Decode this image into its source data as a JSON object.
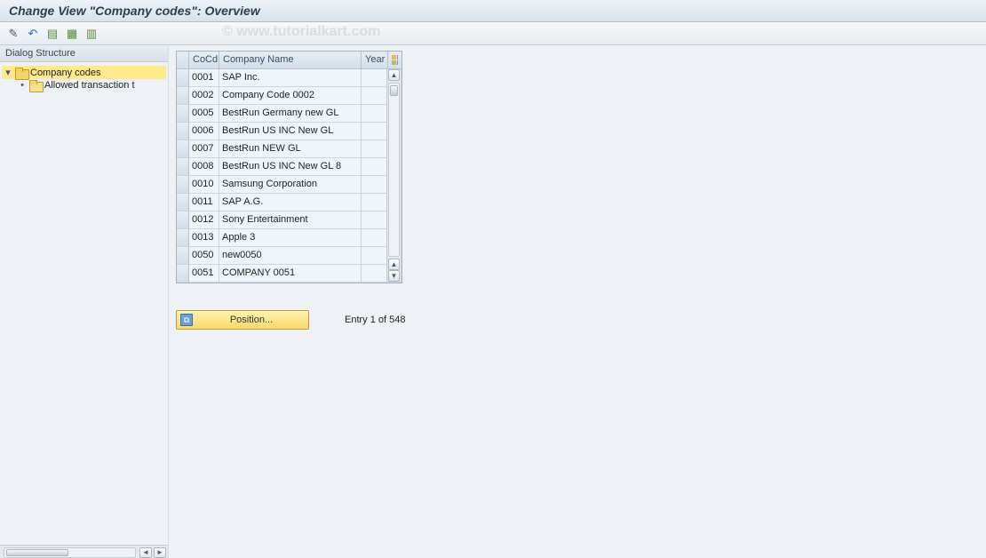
{
  "title": "Change View \"Company codes\": Overview",
  "watermark": "© www.tutorialkart.com",
  "toolbar": {
    "icons": [
      "edit",
      "undo",
      "save",
      "save-var",
      "table"
    ]
  },
  "tree": {
    "header": "Dialog Structure",
    "root": {
      "label": "Company codes",
      "expanded": true,
      "selected": true
    },
    "child": {
      "label": "Allowed transaction t"
    }
  },
  "grid": {
    "columns": {
      "cocd": "CoCd",
      "name": "Company Name",
      "year": "Year"
    },
    "rows": [
      {
        "cocd": "0001",
        "name": "SAP Inc.",
        "year": ""
      },
      {
        "cocd": "0002",
        "name": "Company Code 0002",
        "year": ""
      },
      {
        "cocd": "0005",
        "name": "BestRun Germany new GL",
        "year": ""
      },
      {
        "cocd": "0006",
        "name": "BestRun US INC New GL",
        "year": ""
      },
      {
        "cocd": "0007",
        "name": "BestRun NEW GL",
        "year": ""
      },
      {
        "cocd": "0008",
        "name": "BestRun US INC New GL 8",
        "year": ""
      },
      {
        "cocd": "0010",
        "name": "Samsung Corporation",
        "year": ""
      },
      {
        "cocd": "0011",
        "name": "SAP A.G.",
        "year": ""
      },
      {
        "cocd": "0012",
        "name": "Sony Entertainment",
        "year": ""
      },
      {
        "cocd": "0013",
        "name": "Apple 3",
        "year": ""
      },
      {
        "cocd": "0050",
        "name": "new0050",
        "year": ""
      },
      {
        "cocd": "0051",
        "name": "COMPANY 0051",
        "year": ""
      }
    ]
  },
  "position": {
    "button_label": "Position...",
    "entry_text": "Entry 1 of 548"
  },
  "colors": {
    "background": "#eef1f5",
    "title_gradient_top": "#edf2f7",
    "title_gradient_bottom": "#d8e2ec",
    "selection": "#ffe98a",
    "folder": "#f6d36b",
    "grid_row_bg": "#eff6fb",
    "position_btn_top": "#fff2b0",
    "position_btn_bottom": "#f9d96a"
  }
}
